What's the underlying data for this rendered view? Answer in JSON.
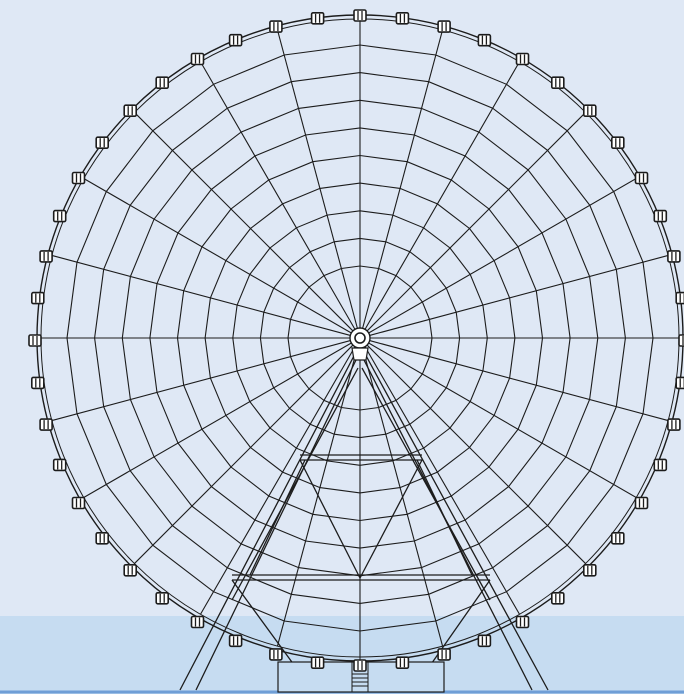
{
  "colors": {
    "sky": "#dfe8f5",
    "ground": "#c6dcf1",
    "baseline": "#6f9ed6",
    "line": "#1c1c1c",
    "cabin_fill": "#ffffff"
  },
  "wheel": {
    "spoke_count": 24,
    "ring_count": 9,
    "cabin_count": 48
  }
}
